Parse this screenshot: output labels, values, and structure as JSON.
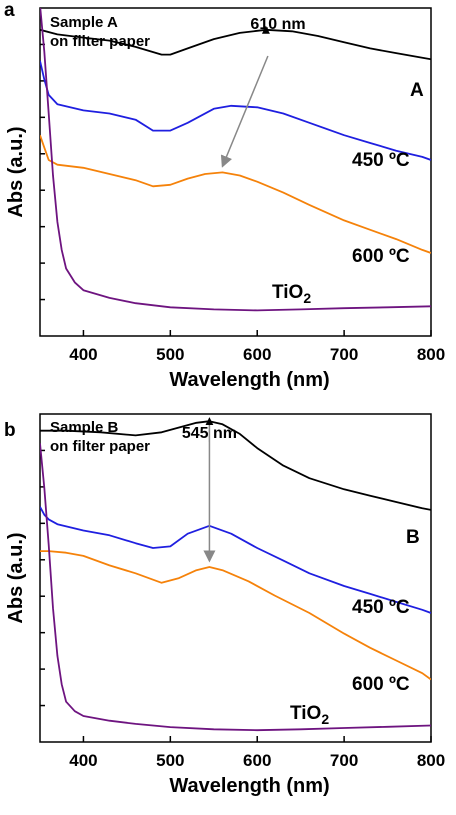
{
  "chart_data": [
    {
      "panel": "a",
      "type": "line",
      "sample_note": [
        "Sample A",
        "on filter paper"
      ],
      "peak_label": "610 nm",
      "peak_x": 610,
      "arrow_end_x": 560,
      "xlabel": "Wavelength (nm)",
      "ylabel": "Abs (a.u.)",
      "xlim": [
        350,
        800
      ],
      "xticks": [
        400,
        500,
        600,
        700,
        800
      ],
      "ylim": [
        0,
        10
      ],
      "yticks_unlabeled": 8,
      "grid": false,
      "series": [
        {
          "name": "A",
          "color": "#000000",
          "x": [
            350,
            370,
            400,
            430,
            460,
            490,
            500,
            520,
            550,
            580,
            610,
            640,
            670,
            700,
            730,
            760,
            790,
            800
          ],
          "y": [
            9.2,
            9.05,
            8.95,
            8.85,
            8.65,
            8.4,
            8.4,
            8.6,
            8.9,
            9.1,
            9.2,
            9.15,
            9.0,
            8.8,
            8.6,
            8.45,
            8.3,
            8.25
          ]
        },
        {
          "name": "450 ºC",
          "color": "#1f1fe0",
          "x": [
            350,
            355,
            360,
            370,
            400,
            430,
            460,
            480,
            500,
            520,
            550,
            570,
            600,
            630,
            660,
            700,
            730,
            760,
            790,
            800
          ],
          "y": [
            8.2,
            7.6,
            7.1,
            6.8,
            6.6,
            6.5,
            6.3,
            5.95,
            5.95,
            6.2,
            6.65,
            6.75,
            6.7,
            6.5,
            6.2,
            5.8,
            5.55,
            5.3,
            5.1,
            5.0
          ]
        },
        {
          "name": "600 ºC",
          "color": "#f5820a",
          "x": [
            350,
            355,
            360,
            370,
            400,
            430,
            460,
            480,
            500,
            520,
            540,
            560,
            580,
            600,
            630,
            660,
            700,
            730,
            760,
            790,
            800
          ],
          "y": [
            5.8,
            5.4,
            5.0,
            4.85,
            4.75,
            4.55,
            4.35,
            4.15,
            4.2,
            4.4,
            4.55,
            4.6,
            4.5,
            4.3,
            3.95,
            3.55,
            3.05,
            2.75,
            2.45,
            2.1,
            2.0
          ]
        },
        {
          "name": "TiO2",
          "color": "#6e1480",
          "x": [
            350,
            355,
            360,
            365,
            370,
            375,
            380,
            390,
            400,
            430,
            460,
            500,
            550,
            600,
            650,
            700,
            750,
            800
          ],
          "y": [
            10.0,
            8.5,
            6.5,
            4.5,
            3.0,
            2.1,
            1.5,
            1.05,
            0.8,
            0.55,
            0.38,
            0.25,
            0.18,
            0.15,
            0.18,
            0.22,
            0.25,
            0.28
          ]
        }
      ],
      "curve_labels": [
        "A",
        "450 ºC",
        "600 ºC",
        "TiO2"
      ]
    },
    {
      "panel": "b",
      "type": "line",
      "sample_note": [
        "Sample B",
        "on filter paper"
      ],
      "peak_label": "545 nm",
      "peak_x": 545,
      "arrow_end_x": 545,
      "xlabel": "Wavelength (nm)",
      "ylabel": "Abs (a.u.)",
      "xlim": [
        350,
        800
      ],
      "xticks": [
        400,
        500,
        600,
        700,
        800
      ],
      "ylim": [
        0,
        10
      ],
      "yticks_unlabeled": 8,
      "grid": false,
      "series": [
        {
          "name": "B",
          "color": "#000000",
          "x": [
            350,
            380,
            420,
            460,
            490,
            510,
            530,
            545,
            560,
            580,
            600,
            630,
            660,
            700,
            730,
            760,
            790,
            800
          ],
          "y": [
            9.6,
            9.6,
            9.55,
            9.45,
            9.55,
            9.7,
            9.85,
            9.9,
            9.8,
            9.5,
            9.05,
            8.5,
            8.1,
            7.75,
            7.55,
            7.35,
            7.15,
            7.1
          ]
        },
        {
          "name": "450 ºC",
          "color": "#1f1fe0",
          "x": [
            350,
            355,
            360,
            370,
            400,
            430,
            460,
            480,
            500,
            520,
            545,
            570,
            600,
            630,
            660,
            700,
            730,
            760,
            790,
            800
          ],
          "y": [
            7.2,
            6.95,
            6.8,
            6.65,
            6.45,
            6.3,
            6.05,
            5.9,
            5.95,
            6.35,
            6.6,
            6.35,
            5.9,
            5.5,
            5.1,
            4.7,
            4.45,
            4.2,
            3.95,
            3.85
          ]
        },
        {
          "name": "600 ºC",
          "color": "#f5820a",
          "x": [
            350,
            360,
            380,
            400,
            430,
            460,
            490,
            510,
            530,
            545,
            560,
            590,
            620,
            660,
            700,
            730,
            760,
            790,
            800
          ],
          "y": [
            5.8,
            5.8,
            5.75,
            5.65,
            5.35,
            5.1,
            4.8,
            4.95,
            5.2,
            5.3,
            5.2,
            4.85,
            4.4,
            3.85,
            3.2,
            2.75,
            2.35,
            1.95,
            1.75
          ]
        },
        {
          "name": "TiO2",
          "color": "#6e1480",
          "x": [
            350,
            355,
            360,
            365,
            370,
            375,
            380,
            390,
            400,
            430,
            460,
            500,
            550,
            600,
            650,
            700,
            750,
            800
          ],
          "y": [
            9.2,
            7.8,
            6.0,
            4.0,
            2.5,
            1.6,
            1.05,
            0.75,
            0.6,
            0.45,
            0.35,
            0.25,
            0.18,
            0.15,
            0.18,
            0.22,
            0.26,
            0.3
          ]
        }
      ],
      "curve_labels": [
        "B",
        "450 ºC",
        "600 ºC",
        "TiO2"
      ]
    }
  ]
}
